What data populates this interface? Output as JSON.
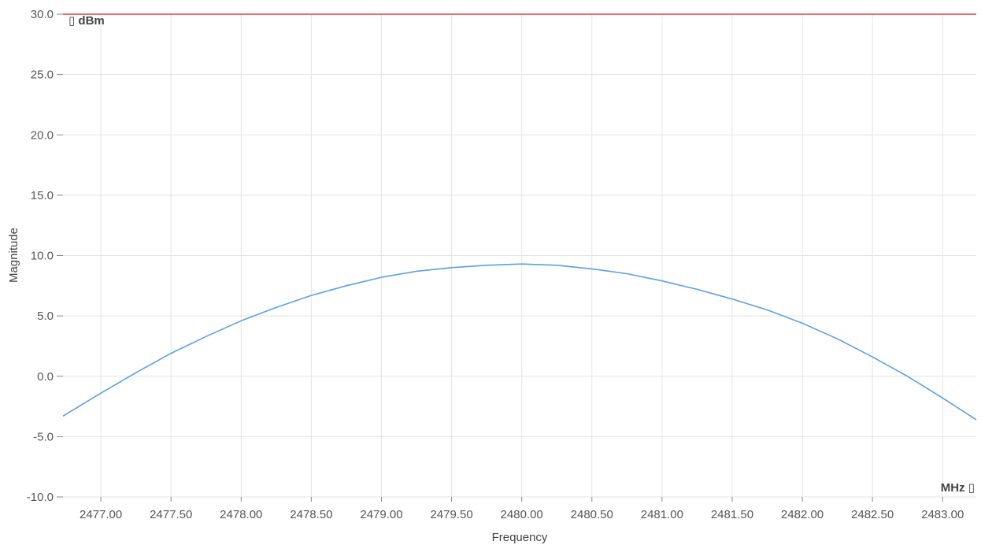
{
  "chart_data": {
    "type": "line",
    "xlabel": "Frequency",
    "ylabel": "Magnitude",
    "y_unit_label": "▯ dBm",
    "x_unit_label": "MHz ▯",
    "xlim": [
      2476.73,
      2483.24
    ],
    "ylim": [
      -10,
      30
    ],
    "x_ticks": [
      2477.0,
      2477.5,
      2478.0,
      2478.5,
      2479.0,
      2479.5,
      2480.0,
      2480.5,
      2481.0,
      2481.5,
      2482.0,
      2482.5,
      2483.0
    ],
    "x_tick_labels": [
      "2477.00",
      "2477.50",
      "2478.00",
      "2478.50",
      "2479.00",
      "2479.50",
      "2480.00",
      "2480.50",
      "2481.00",
      "2481.50",
      "2482.00",
      "2482.50",
      "2483.00"
    ],
    "y_ticks": [
      -10,
      -5,
      0,
      5,
      10,
      15,
      20,
      25,
      30
    ],
    "y_tick_labels": [
      "-10.0",
      "-5.0",
      "0.0",
      "5.0",
      "10.0",
      "15.0",
      "20.0",
      "25.0",
      "30.0"
    ],
    "grid": true,
    "series": [
      {
        "color": "#5aa0e6",
        "x": [
          2476.73,
          2477.0,
          2477.25,
          2477.5,
          2477.75,
          2478.0,
          2478.25,
          2478.5,
          2478.75,
          2479.0,
          2479.25,
          2479.5,
          2479.75,
          2480.0,
          2480.25,
          2480.5,
          2480.75,
          2481.0,
          2481.25,
          2481.5,
          2481.75,
          2482.0,
          2482.25,
          2482.5,
          2482.75,
          2483.0,
          2483.24
        ],
        "y": [
          -3.3,
          -1.4,
          0.3,
          1.9,
          3.3,
          4.6,
          5.7,
          6.7,
          7.5,
          8.2,
          8.7,
          9.0,
          9.2,
          9.3,
          9.2,
          8.9,
          8.5,
          7.9,
          7.2,
          6.4,
          5.5,
          4.4,
          3.1,
          1.6,
          0.0,
          -1.8,
          -3.6
        ]
      },
      {
        "color": "#e57373",
        "x": [
          2476.73,
          2483.24
        ],
        "y": [
          30.0,
          30.0
        ]
      }
    ]
  }
}
